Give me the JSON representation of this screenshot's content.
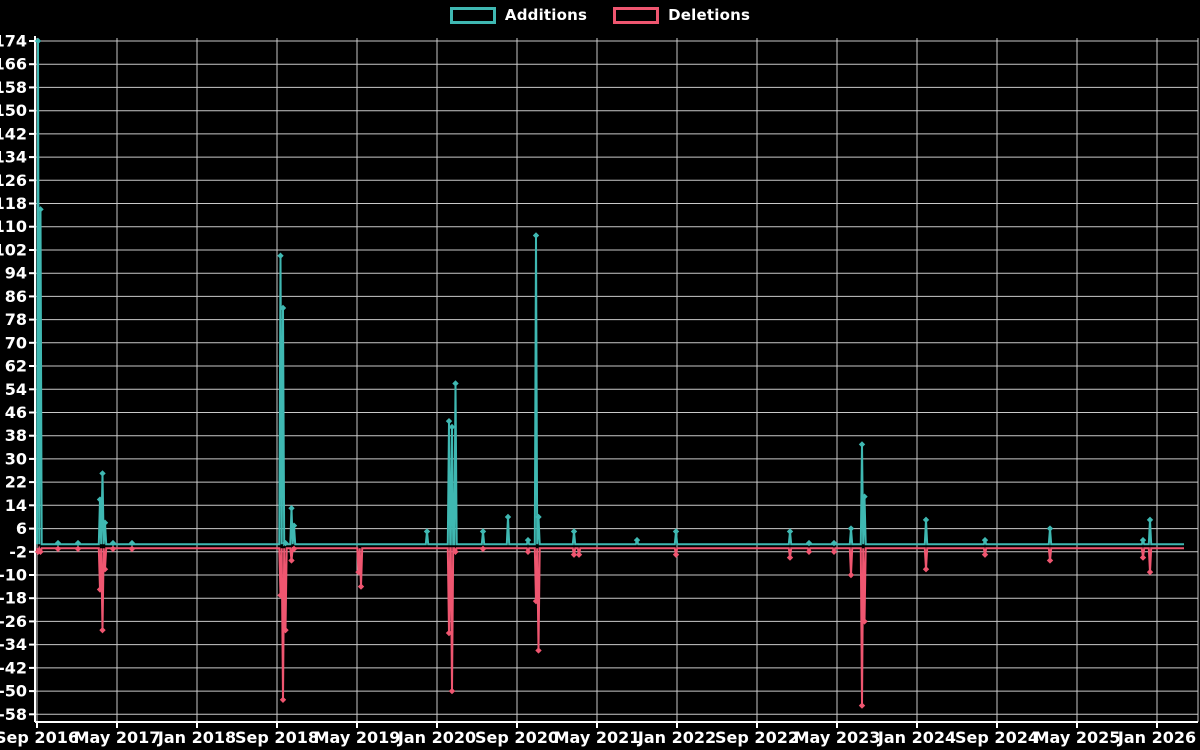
{
  "chart_data": {
    "type": "line",
    "title": "",
    "description": "Weekly additions and deletions spike chart on black background",
    "background_color": "#000000",
    "text_color": "#ffffff",
    "grid_color": "#c9c9c9",
    "axis_color": "#ffffff",
    "grid": true,
    "legend": {
      "position": "top-center",
      "entries": [
        {
          "label": "Additions",
          "color": "#3fb8b2"
        },
        {
          "label": "Deletions",
          "color": "#ef5670"
        }
      ]
    },
    "x_axis": {
      "start": "2016-09",
      "end": "2026-03",
      "months_per_tick": 8,
      "tick_months": [
        0,
        8,
        16,
        24,
        32,
        40,
        48,
        56,
        64,
        72,
        80,
        88,
        96,
        104,
        112
      ],
      "tick_labels": [
        "Sep 2016",
        "May 2017",
        "Jan 2018",
        "Sep 2018",
        "May 2019",
        "Jan 2020",
        "Sep 2020",
        "May 2021",
        "Jan 2022",
        "Sep 2022",
        "May 2023",
        "Jan 2024",
        "Sep 2024",
        "May 2025",
        "Jan 2026"
      ]
    },
    "y_axis": {
      "min": -58,
      "max": 174,
      "step": 8,
      "tick_labels": [
        "174",
        "166",
        "158",
        "150",
        "142",
        "134",
        "126",
        "118",
        "110",
        "102",
        "94",
        "86",
        "78",
        "70",
        "62",
        "54",
        "46",
        "38",
        "30",
        "22",
        "14",
        "6",
        "-2",
        "-10",
        "-18",
        "-26",
        "-34",
        "-42",
        "-50",
        "-58"
      ]
    },
    "series": [
      {
        "name": "Additions",
        "key": "additions",
        "color": "#3fb8b2",
        "baseline": 0.6,
        "marker": "diamond"
      },
      {
        "name": "Deletions",
        "key": "deletions",
        "color": "#ef5670",
        "baseline": -0.8,
        "marker": "diamond"
      }
    ],
    "end_month_offset": 114.7,
    "events": [
      {
        "m": 0.1,
        "date": "2016-09",
        "additions": 174,
        "deletions": -2
      },
      {
        "m": 0.35,
        "date": "2016-09",
        "additions": 116,
        "deletions": -2
      },
      {
        "m": 2.1,
        "date": "2016-11",
        "additions": 1,
        "deletions": -1
      },
      {
        "m": 4.1,
        "date": "2017-01",
        "additions": 1,
        "deletions": -1
      },
      {
        "m": 6.3,
        "date": "2017-03",
        "additions": 16,
        "deletions": -15
      },
      {
        "m": 6.55,
        "date": "2017-03",
        "additions": 25,
        "deletions": -29
      },
      {
        "m": 6.8,
        "date": "2017-04",
        "additions": 8,
        "deletions": -8
      },
      {
        "m": 7.6,
        "date": "2017-04",
        "additions": 1,
        "deletions": -1
      },
      {
        "m": 9.5,
        "date": "2017-06",
        "additions": 1,
        "deletions": -1
      },
      {
        "m": 24.35,
        "date": "2018-09",
        "additions": 100,
        "deletions": -17
      },
      {
        "m": 24.6,
        "date": "2018-09",
        "additions": 82,
        "deletions": -53
      },
      {
        "m": 24.85,
        "date": "2018-10",
        "additions": 1,
        "deletions": -29
      },
      {
        "m": 25.45,
        "date": "2018-10",
        "additions": 13,
        "deletions": -5
      },
      {
        "m": 25.7,
        "date": "2018-11",
        "additions": 7,
        "deletions": -1
      },
      {
        "m": 32.15,
        "date": "2019-05",
        "additions": 0,
        "deletions": -9
      },
      {
        "m": 32.4,
        "date": "2019-05",
        "additions": 0,
        "deletions": -14
      },
      {
        "m": 39.0,
        "date": "2019-12",
        "additions": 5,
        "deletions": 0
      },
      {
        "m": 41.2,
        "date": "2020-02",
        "additions": 43,
        "deletions": -30
      },
      {
        "m": 41.5,
        "date": "2020-02",
        "additions": 41,
        "deletions": -50
      },
      {
        "m": 41.85,
        "date": "2020-03",
        "additions": 56,
        "deletions": -2
      },
      {
        "m": 44.6,
        "date": "2020-05",
        "additions": 5,
        "deletions": -1
      },
      {
        "m": 47.1,
        "date": "2020-08",
        "additions": 10,
        "deletions": 0
      },
      {
        "m": 49.1,
        "date": "2020-10",
        "additions": 2,
        "deletions": -2
      },
      {
        "m": 49.9,
        "date": "2020-10",
        "additions": 107,
        "deletions": -19
      },
      {
        "m": 50.15,
        "date": "2020-11",
        "additions": 10,
        "deletions": -36
      },
      {
        "m": 53.7,
        "date": "2021-02",
        "additions": 5,
        "deletions": -3
      },
      {
        "m": 54.2,
        "date": "2021-03",
        "additions": 0,
        "deletions": -3
      },
      {
        "m": 60.0,
        "date": "2021-09",
        "additions": 2,
        "deletions": 0
      },
      {
        "m": 63.9,
        "date": "2022-01",
        "additions": 5,
        "deletions": -3
      },
      {
        "m": 75.3,
        "date": "2022-12",
        "additions": 5,
        "deletions": -4
      },
      {
        "m": 77.2,
        "date": "2023-02",
        "additions": 1,
        "deletions": -2
      },
      {
        "m": 79.7,
        "date": "2023-04",
        "additions": 1,
        "deletions": -2
      },
      {
        "m": 81.4,
        "date": "2023-06",
        "additions": 6,
        "deletions": -10
      },
      {
        "m": 82.5,
        "date": "2023-07",
        "additions": 35,
        "deletions": -55
      },
      {
        "m": 82.75,
        "date": "2023-07",
        "additions": 17,
        "deletions": -26
      },
      {
        "m": 88.9,
        "date": "2024-01",
        "additions": 9,
        "deletions": -8
      },
      {
        "m": 94.8,
        "date": "2024-07",
        "additions": 2,
        "deletions": -3
      },
      {
        "m": 101.3,
        "date": "2025-02",
        "additions": 6,
        "deletions": -5
      },
      {
        "m": 110.6,
        "date": "2025-11",
        "additions": 2,
        "deletions": -4
      },
      {
        "m": 111.3,
        "date": "2025-12",
        "additions": 9,
        "deletions": -9
      }
    ]
  }
}
